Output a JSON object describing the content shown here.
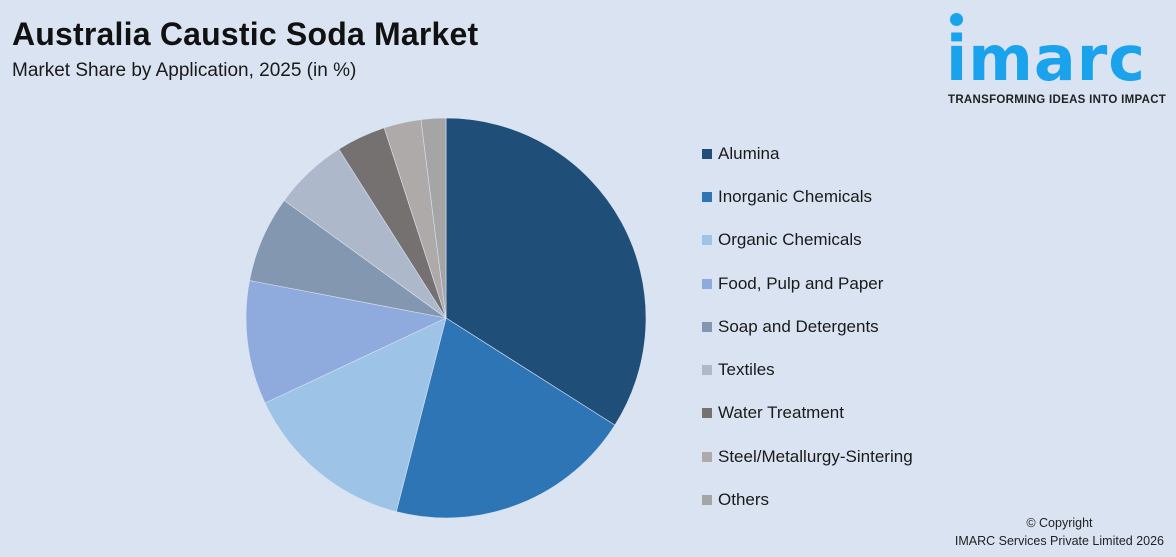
{
  "header": {
    "title": "Australia Caustic Soda Market",
    "subtitle": "Market Share by Application, 2025 (in %)"
  },
  "logo": {
    "word": "imarc",
    "tagline": "TRANSFORMING IDEAS INTO IMPACT",
    "color": "#1aa3ec"
  },
  "legend": {
    "items": [
      {
        "label": "Alumina",
        "color": "#1f4e79"
      },
      {
        "label": "Inorganic Chemicals",
        "color": "#2e75b6"
      },
      {
        "label": "Organic Chemicals",
        "color": "#9dc3e6"
      },
      {
        "label": "Food, Pulp and Paper",
        "color": "#8faadc"
      },
      {
        "label": "Soap and Detergents",
        "color": "#8497b0"
      },
      {
        "label": "Textiles",
        "color": "#adb9ca"
      },
      {
        "label": "Water Treatment",
        "color": "#767171"
      },
      {
        "label": "Steel/Metallurgy-Sintering",
        "color": "#aeaaaa"
      },
      {
        "label": "Others",
        "color": "#a5a5a5"
      }
    ]
  },
  "footer": {
    "copyright_line1": "© Copyright",
    "copyright_line2": "IMARC Services Private Limited 2026"
  },
  "chart_data": {
    "type": "pie",
    "title": "Australia Caustic Soda Market",
    "subtitle": "Market Share by Application, 2025 (in %)",
    "categories": [
      "Alumina",
      "Inorganic Chemicals",
      "Organic Chemicals",
      "Food, Pulp and Paper",
      "Soap and Detergents",
      "Textiles",
      "Water Treatment",
      "Steel/Metallurgy-Sintering",
      "Others"
    ],
    "values": [
      34,
      20,
      14,
      10,
      7,
      6,
      4,
      3,
      2
    ],
    "colors": [
      "#1f4e79",
      "#2e75b6",
      "#9dc3e6",
      "#8faadc",
      "#8497b0",
      "#adb9ca",
      "#767171",
      "#aeaaaa",
      "#a5a5a5"
    ],
    "start_angle": "12 o'clock, clockwise",
    "legend_position": "right",
    "data_labels": false
  }
}
